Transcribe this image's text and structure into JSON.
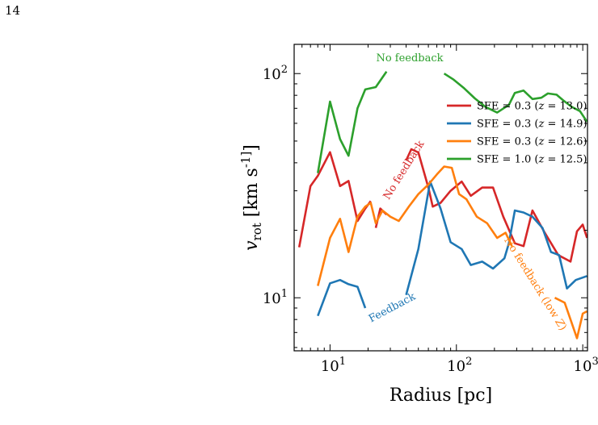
{
  "page": {
    "number": "14"
  },
  "chart_data": {
    "type": "line",
    "xlabel": "Radius [pc]",
    "ylabel": "v_rot  [km s^-1]",
    "xscale": "log",
    "yscale": "log",
    "xlim": [
      5.2,
      1090
    ],
    "ylim": [
      5.8,
      135
    ],
    "x_ticks": [
      {
        "value": 10,
        "label": "10^1"
      },
      {
        "value": 100,
        "label": "10^2"
      },
      {
        "value": 1000,
        "label": "10^3"
      }
    ],
    "y_ticks": [
      {
        "value": 10,
        "label": "10^1"
      },
      {
        "value": 100,
        "label": "10^2"
      }
    ],
    "grid": false,
    "legend": {
      "placement": "upper-right"
    },
    "series": [
      {
        "name": "SFE = 0.3 (z = 13.0)",
        "color": "#d62728",
        "segments": [
          [
            [
              5.7,
              16.8
            ],
            [
              7.0,
              31.5
            ],
            [
              8.0,
              35.0
            ],
            [
              10.0,
              44.6
            ],
            [
              12.0,
              31.5
            ],
            [
              14.0,
              33.2
            ],
            [
              16.5,
              22.0
            ],
            [
              19.0,
              25.0
            ],
            [
              21.0,
              27.0
            ]
          ],
          [
            [
              23.0,
              20.5
            ],
            [
              25.0,
              25.0
            ],
            [
              28.0,
              23.5
            ]
          ],
          [
            [
              40.0,
              41.0
            ],
            [
              44.0,
              46.0
            ],
            [
              50.0,
              44.5
            ],
            [
              60.0,
              31.0
            ],
            [
              65.0,
              25.5
            ],
            [
              75.0,
              26.5
            ],
            [
              90.0,
              30.0
            ],
            [
              110.0,
              33.0
            ],
            [
              130.0,
              28.5
            ],
            [
              160.0,
              31.0
            ],
            [
              195.0,
              31.0
            ],
            [
              235.0,
              23.0
            ],
            [
              290.0,
              17.5
            ],
            [
              340.0,
              17.0
            ],
            [
              400.0,
              24.5
            ],
            [
              500.0,
              19.5
            ],
            [
              640.0,
              15.5
            ],
            [
              800.0,
              14.5
            ],
            [
              900.0,
              19.8
            ],
            [
              1000.0,
              21.2
            ],
            [
              1080.0,
              18.5
            ]
          ]
        ]
      },
      {
        "name": "SFE = 0.3 (z = 14.9)",
        "color": "#1f77b4",
        "segments": [
          [
            [
              8.0,
              8.3
            ],
            [
              10.0,
              11.6
            ],
            [
              12.0,
              12.0
            ],
            [
              14.0,
              11.5
            ],
            [
              16.5,
              11.2
            ],
            [
              19.0,
              9.0
            ]
          ],
          [
            [
              40.0,
              10.3
            ],
            [
              50.0,
              16.5
            ],
            [
              62.0,
              33.0
            ],
            [
              75.0,
              25.0
            ],
            [
              90.0,
              17.7
            ],
            [
              110.0,
              16.5
            ],
            [
              130.0,
              14.0
            ],
            [
              160.0,
              14.5
            ],
            [
              195.0,
              13.5
            ],
            [
              240.0,
              15.0
            ],
            [
              260.0,
              17.5
            ],
            [
              290.0,
              24.5
            ],
            [
              340.0,
              24.0
            ],
            [
              400.0,
              23.0
            ],
            [
              480.0,
              20.5
            ],
            [
              560.0,
              16.0
            ],
            [
              650.0,
              15.5
            ],
            [
              750.0,
              11.0
            ],
            [
              880.0,
              12.0
            ],
            [
              1080.0,
              12.5
            ]
          ]
        ]
      },
      {
        "name": "SFE = 0.3 (z = 12.6)",
        "color": "#ff7f0e",
        "segments": [
          [
            [
              8.0,
              11.3
            ],
            [
              10.0,
              18.5
            ],
            [
              12.0,
              22.5
            ],
            [
              14.0,
              16.0
            ],
            [
              16.5,
              23.0
            ],
            [
              19.0,
              25.5
            ],
            [
              21.0,
              26.5
            ],
            [
              23.0,
              21.5
            ],
            [
              26.0,
              24.5
            ],
            [
              30.0,
              23.0
            ],
            [
              35.0,
              22.0
            ],
            [
              42.0,
              25.5
            ],
            [
              50.0,
              29.0
            ],
            [
              60.0,
              32.0
            ],
            [
              70.0,
              35.5
            ],
            [
              80.0,
              38.5
            ],
            [
              92.0,
              38.0
            ],
            [
              105.0,
              29.0
            ],
            [
              120.0,
              27.5
            ],
            [
              145.0,
              23.0
            ],
            [
              175.0,
              21.5
            ],
            [
              210.0,
              18.5
            ],
            [
              245.0,
              19.5
            ],
            [
              275.0,
              17.0
            ]
          ],
          [
            [
              600.0,
              10.0
            ],
            [
              720.0,
              9.5
            ],
            [
              800.0,
              8.0
            ],
            [
              900.0,
              6.6
            ],
            [
              1000.0,
              8.5
            ],
            [
              1080.0,
              8.7
            ]
          ]
        ]
      },
      {
        "name": "SFE = 1.0 (z = 12.5)",
        "color": "#2ca02c",
        "segments": [
          [
            [
              8.0,
              36.0
            ],
            [
              10.0,
              75.0
            ],
            [
              12.0,
              51.0
            ],
            [
              14.0,
              43.0
            ],
            [
              16.5,
              70.0
            ],
            [
              19.0,
              85.0
            ],
            [
              23.0,
              87.0
            ],
            [
              28.0,
              102.0
            ]
          ],
          [
            [
              80.0,
              100.0
            ],
            [
              95.0,
              94.0
            ],
            [
              115.0,
              86.0
            ],
            [
              140.0,
              77.5
            ],
            [
              170.0,
              71.0
            ],
            [
              210.0,
              67.0
            ],
            [
              260.0,
              72.5
            ],
            [
              290.0,
              82.0
            ],
            [
              340.0,
              84.0
            ],
            [
              400.0,
              77.0
            ],
            [
              470.0,
              78.0
            ],
            [
              530.0,
              81.5
            ],
            [
              620.0,
              80.5
            ],
            [
              700.0,
              76.0
            ],
            [
              820.0,
              71.0
            ],
            [
              950.0,
              68.0
            ],
            [
              1080.0,
              61.0
            ]
          ]
        ]
      }
    ],
    "annotations": [
      {
        "text": "No feedback",
        "color": "#2ca02c"
      },
      {
        "text": "No feedback",
        "color": "#d62728"
      },
      {
        "text": "Feedback",
        "color": "#1f77b4"
      },
      {
        "text": "No feedback (low Z)",
        "color": "#ff7f0e"
      }
    ]
  }
}
